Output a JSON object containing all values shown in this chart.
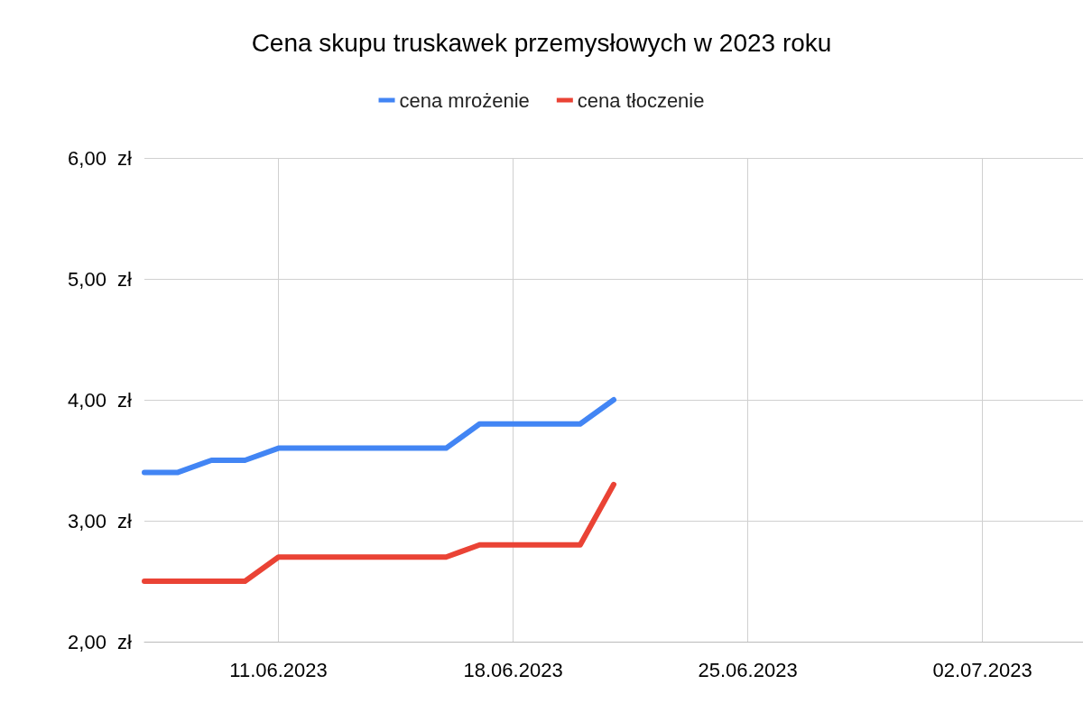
{
  "chart_data": {
    "type": "line",
    "title": "Cena skupu truskawek przemysłowych w 2023 roku",
    "x": [
      "2023-06-07",
      "2023-06-08",
      "2023-06-09",
      "2023-06-10",
      "2023-06-11",
      "2023-06-12",
      "2023-06-13",
      "2023-06-14",
      "2023-06-15",
      "2023-06-16",
      "2023-06-17",
      "2023-06-18",
      "2023-06-19",
      "2023-06-20",
      "2023-06-21"
    ],
    "series": [
      {
        "name": "cena mrożenie",
        "color": "#4285f4",
        "values": [
          3.4,
          3.4,
          3.5,
          3.5,
          3.6,
          3.6,
          3.6,
          3.6,
          3.6,
          3.6,
          3.8,
          3.8,
          3.8,
          3.8,
          4.0
        ]
      },
      {
        "name": "cena tłoczenie",
        "color": "#ea4335",
        "values": [
          2.5,
          2.5,
          2.5,
          2.5,
          2.7,
          2.7,
          2.7,
          2.7,
          2.7,
          2.7,
          2.8,
          2.8,
          2.8,
          2.8,
          3.3
        ]
      }
    ],
    "xlim": [
      "2023-06-07",
      "2023-07-05"
    ],
    "xticks": [
      {
        "value": "2023-06-11",
        "label": "11.06.2023"
      },
      {
        "value": "2023-06-18",
        "label": "18.06.2023"
      },
      {
        "value": "2023-06-25",
        "label": "25.06.2023"
      },
      {
        "value": "2023-07-02",
        "label": "02.07.2023"
      }
    ],
    "ylim": [
      2,
      6
    ],
    "yticks": [
      {
        "value": 2,
        "label": "2,00  zł"
      },
      {
        "value": 3,
        "label": "3,00  zł"
      },
      {
        "value": 4,
        "label": "4,00  zł"
      },
      {
        "value": 5,
        "label": "5,00  zł"
      },
      {
        "value": 6,
        "label": "6,00  zł"
      }
    ],
    "grid": true,
    "legend": "top",
    "marker": "none",
    "line_style": "solid"
  }
}
